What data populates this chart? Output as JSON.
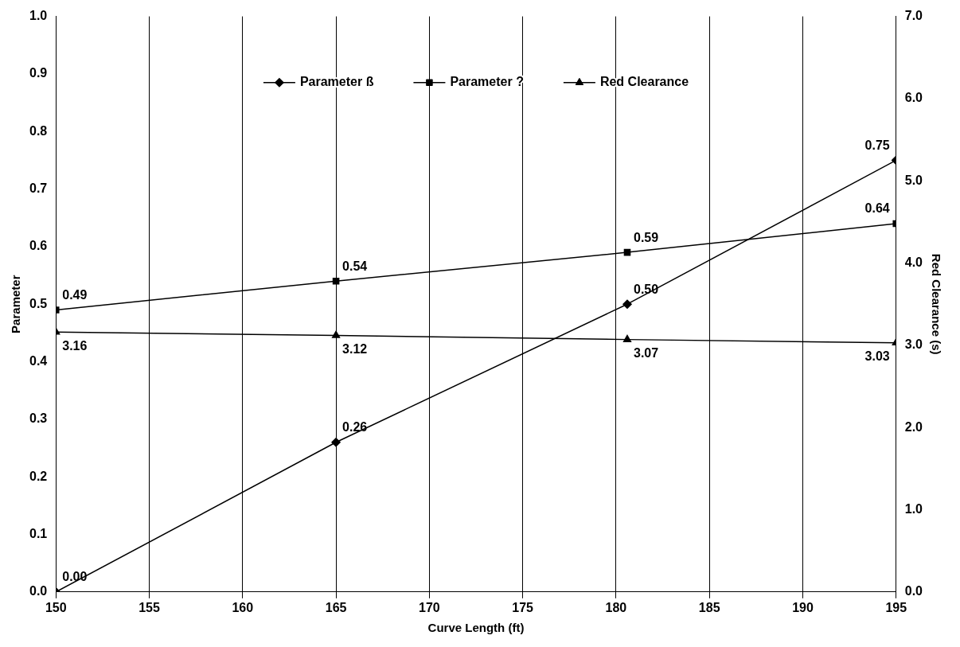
{
  "chart_data": {
    "type": "line",
    "xlabel": "Curve Length (ft)",
    "ylabel": "Parameter",
    "y2label": "Red Clearance (s)",
    "xlim": [
      150,
      195
    ],
    "xticks": [
      150,
      155,
      160,
      165,
      170,
      175,
      180,
      185,
      190,
      195
    ],
    "ylim": [
      0,
      1
    ],
    "yticks": [
      {
        "value": 0,
        "label": "0.0"
      },
      {
        "value": 0.1,
        "label": "0.1"
      },
      {
        "value": 0.2,
        "label": "0.2"
      },
      {
        "value": 0.3,
        "label": "0.3"
      },
      {
        "value": 0.4,
        "label": "0.4"
      },
      {
        "value": 0.5,
        "label": "0.5"
      },
      {
        "value": 0.6,
        "label": "0.6"
      },
      {
        "value": 0.7,
        "label": "0.7"
      },
      {
        "value": 0.8,
        "label": "0.8"
      },
      {
        "value": 0.9,
        "label": "0.9"
      },
      {
        "value": 1,
        "label": "1.0"
      }
    ],
    "y2lim": [
      0,
      7
    ],
    "y2ticks": [
      {
        "value": 0,
        "label": "0.0"
      },
      {
        "value": 1,
        "label": "1.0"
      },
      {
        "value": 2,
        "label": "2.0"
      },
      {
        "value": 3,
        "label": "3.0"
      },
      {
        "value": 4,
        "label": "4.0"
      },
      {
        "value": 5,
        "label": "5.0"
      },
      {
        "value": 6,
        "label": "6.0"
      },
      {
        "value": 7,
        "label": "7.0"
      }
    ],
    "grid": "x",
    "legend": "top",
    "line_style": "solid",
    "series": [
      {
        "name": "Parameter ß",
        "color": "#000000",
        "marker": "diamond",
        "x": [
          150,
          165,
          180.6,
          195
        ],
        "values": [
          0,
          0.26,
          0.5,
          0.75
        ],
        "value_labels": [
          "0.00",
          "0.26",
          "0.50",
          "0.75"
        ]
      },
      {
        "name": "Parameter ?",
        "color": "#000000",
        "marker": "square",
        "x": [
          150,
          165,
          180.6,
          195
        ],
        "values": [
          0.49,
          0.54,
          0.59,
          0.64
        ],
        "value_labels": [
          "0.49",
          "0.54",
          "0.59",
          "0.64"
        ]
      },
      {
        "name": "Red Clearance",
        "color": "#000000",
        "marker": "triangle",
        "axis": "y2",
        "x": [
          150,
          165,
          180.6,
          195
        ],
        "values": [
          3.16,
          3.12,
          3.07,
          3.03
        ],
        "value_labels": [
          "3.16",
          "3.12",
          "3.07",
          "3.03"
        ]
      }
    ]
  }
}
